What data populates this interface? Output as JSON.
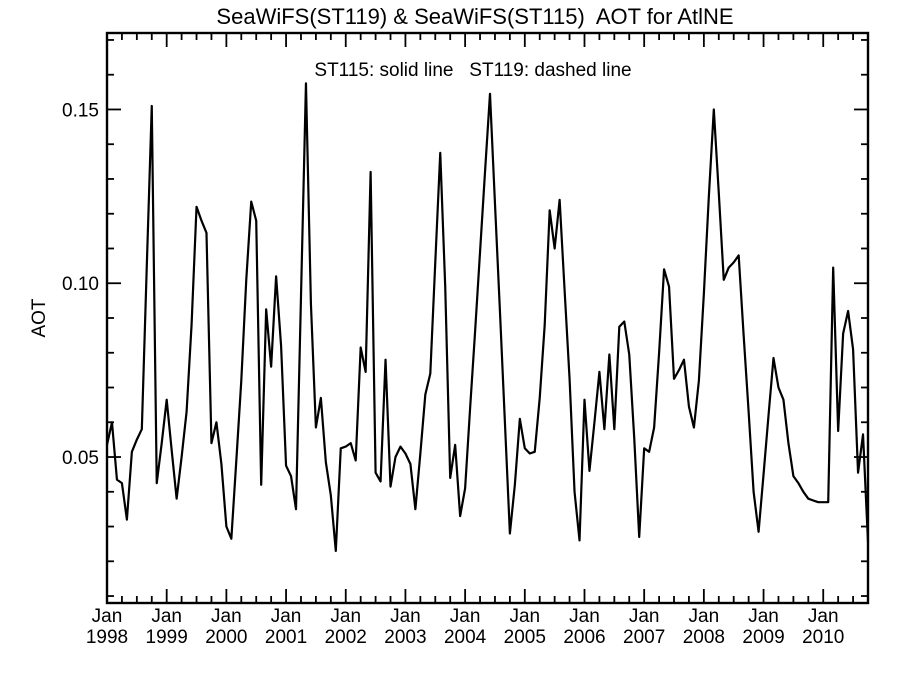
{
  "title": "SeaWiFS(ST119) & SeaWiFS(ST115)  AOT for AtlNE",
  "legend_note": "ST115: solid line   ST119: dashed line",
  "colors": {
    "background": "#ffffff",
    "axis": "#000000",
    "line": "#000000"
  },
  "chart_data": {
    "type": "line",
    "title": "SeaWiFS(ST119) & SeaWiFS(ST115)  AOT for AtlNE",
    "annotation": "ST115: solid line   ST119: dashed line",
    "xlabel": "",
    "ylabel": "AOT",
    "ylim": [
      0.008,
      0.172
    ],
    "grid": false,
    "y_axis": {
      "label": "AOT",
      "tick_values": [
        0.05,
        0.1,
        0.15
      ],
      "tick_labels": [
        "0.05",
        "0.10",
        "0.15"
      ],
      "minor_tick_step": 0.01
    },
    "x_axis": {
      "tick_month_label": "Jan",
      "tick_years": [
        "1998",
        "1999",
        "2000",
        "2001",
        "2002",
        "2003",
        "2004",
        "2005",
        "2006",
        "2007",
        "2008",
        "2009",
        "2010"
      ],
      "minor_tick_step_months": 3,
      "start": "Jan 1998",
      "end": "Oct 2010",
      "cadence": "monthly"
    },
    "series": [
      {
        "name": "ST115",
        "style": "solid",
        "color": "#000000",
        "first_month": "1998-01",
        "values": [
          0.0535,
          0.06,
          0.0435,
          0.0425,
          0.032,
          0.0515,
          0.055,
          0.058,
          0.105,
          0.151,
          0.0425,
          0.054,
          0.0665,
          0.052,
          0.038,
          0.05,
          0.063,
          0.088,
          0.122,
          0.118,
          0.1145,
          0.054,
          0.06,
          0.048,
          0.03,
          0.0265,
          0.049,
          0.072,
          0.101,
          0.1235,
          0.118,
          0.042,
          0.0925,
          0.076,
          0.102,
          0.082,
          0.0475,
          0.0445,
          0.035,
          0.096,
          0.1575,
          0.094,
          0.0585,
          0.067,
          0.0485,
          0.039,
          0.023,
          0.0525,
          0.053,
          0.054,
          0.049,
          0.0815,
          0.0745,
          0.132,
          0.0455,
          0.043,
          0.078,
          0.0415,
          0.05,
          0.053,
          0.051,
          0.048,
          0.035,
          0.051,
          0.068,
          0.074,
          0.106,
          0.1375,
          0.099,
          0.044,
          0.0535,
          0.033,
          0.041,
          0.064,
          0.086,
          0.109,
          0.132,
          0.1545,
          0.123,
          0.092,
          0.06,
          0.028,
          0.042,
          0.061,
          0.0525,
          0.051,
          0.0515,
          0.067,
          0.088,
          0.121,
          0.11,
          0.124,
          0.098,
          0.0725,
          0.04,
          0.026,
          0.0665,
          0.046,
          0.06,
          0.0745,
          0.058,
          0.0795,
          0.058,
          0.0875,
          0.089,
          0.0795,
          0.0555,
          0.027,
          0.0525,
          0.0515,
          0.0585,
          0.08,
          0.104,
          0.099,
          0.0725,
          0.075,
          0.078,
          0.0645,
          0.0585,
          0.072,
          0.097,
          0.125,
          0.15,
          0.126,
          0.101,
          0.1045,
          0.106,
          0.108,
          0.085,
          0.063,
          0.04,
          0.0285,
          0.045,
          0.062,
          0.0785,
          0.07,
          0.0665,
          0.054,
          0.0445,
          0.0425,
          0.04,
          0.038,
          0.0375,
          0.037,
          0.037,
          0.037,
          0.1045,
          0.0575,
          0.0855,
          0.092,
          0.081,
          0.0455,
          0.0565,
          0.0255
        ]
      }
    ]
  }
}
